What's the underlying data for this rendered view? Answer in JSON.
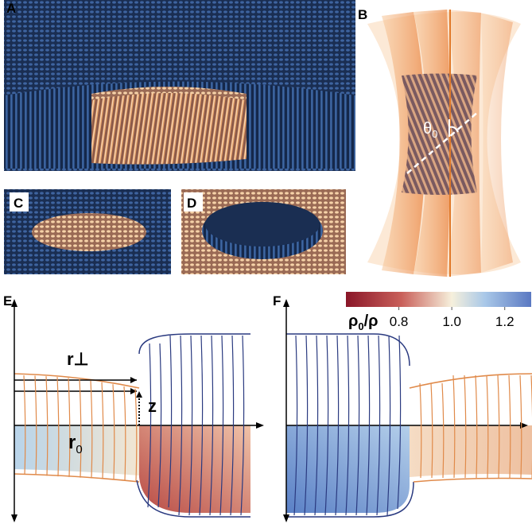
{
  "panels": {
    "a": "A",
    "b": "B",
    "c": "C",
    "d": "D",
    "e": "E",
    "f": "F"
  },
  "annotations": {
    "theta": {
      "symbol": "θ",
      "sub": "0"
    },
    "r_perp": "r⊥",
    "z": "z",
    "r0": {
      "symbol": "r",
      "sub": "0"
    }
  },
  "colorbar": {
    "label": {
      "symbol": "ρ",
      "sub": "0",
      "rest": "/ρ"
    },
    "range": [
      0.6,
      1.3
    ],
    "ticks": [
      0.8,
      {
        "value": 1,
        "label": "1.0"
      },
      1.2
    ]
  }
}
